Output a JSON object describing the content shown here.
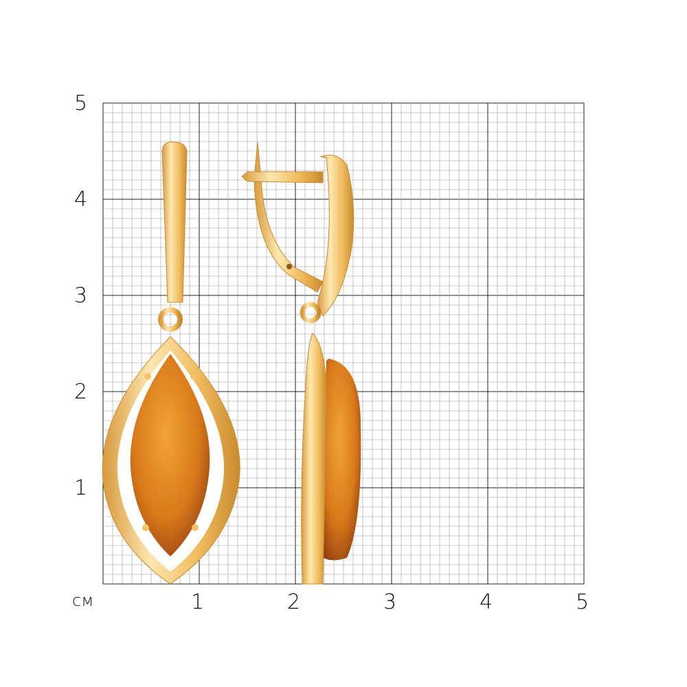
{
  "grid": {
    "unit_label": "см",
    "y_labels": [
      "5",
      "4",
      "3",
      "2",
      "1"
    ],
    "x_labels": [
      "1",
      "2",
      "3",
      "4",
      "5"
    ],
    "range_cm": [
      0,
      5
    ],
    "minor_divisions_per_cm": 10,
    "colors": {
      "major": "#222222",
      "minor": "#9a9a9a"
    }
  },
  "product": {
    "colors": {
      "gold": "#f2c36b",
      "gold_light": "#fde7b0",
      "gold_dark": "#c98a2e",
      "amber": "#d9781a",
      "amber_dark": "#8a3a10"
    }
  }
}
